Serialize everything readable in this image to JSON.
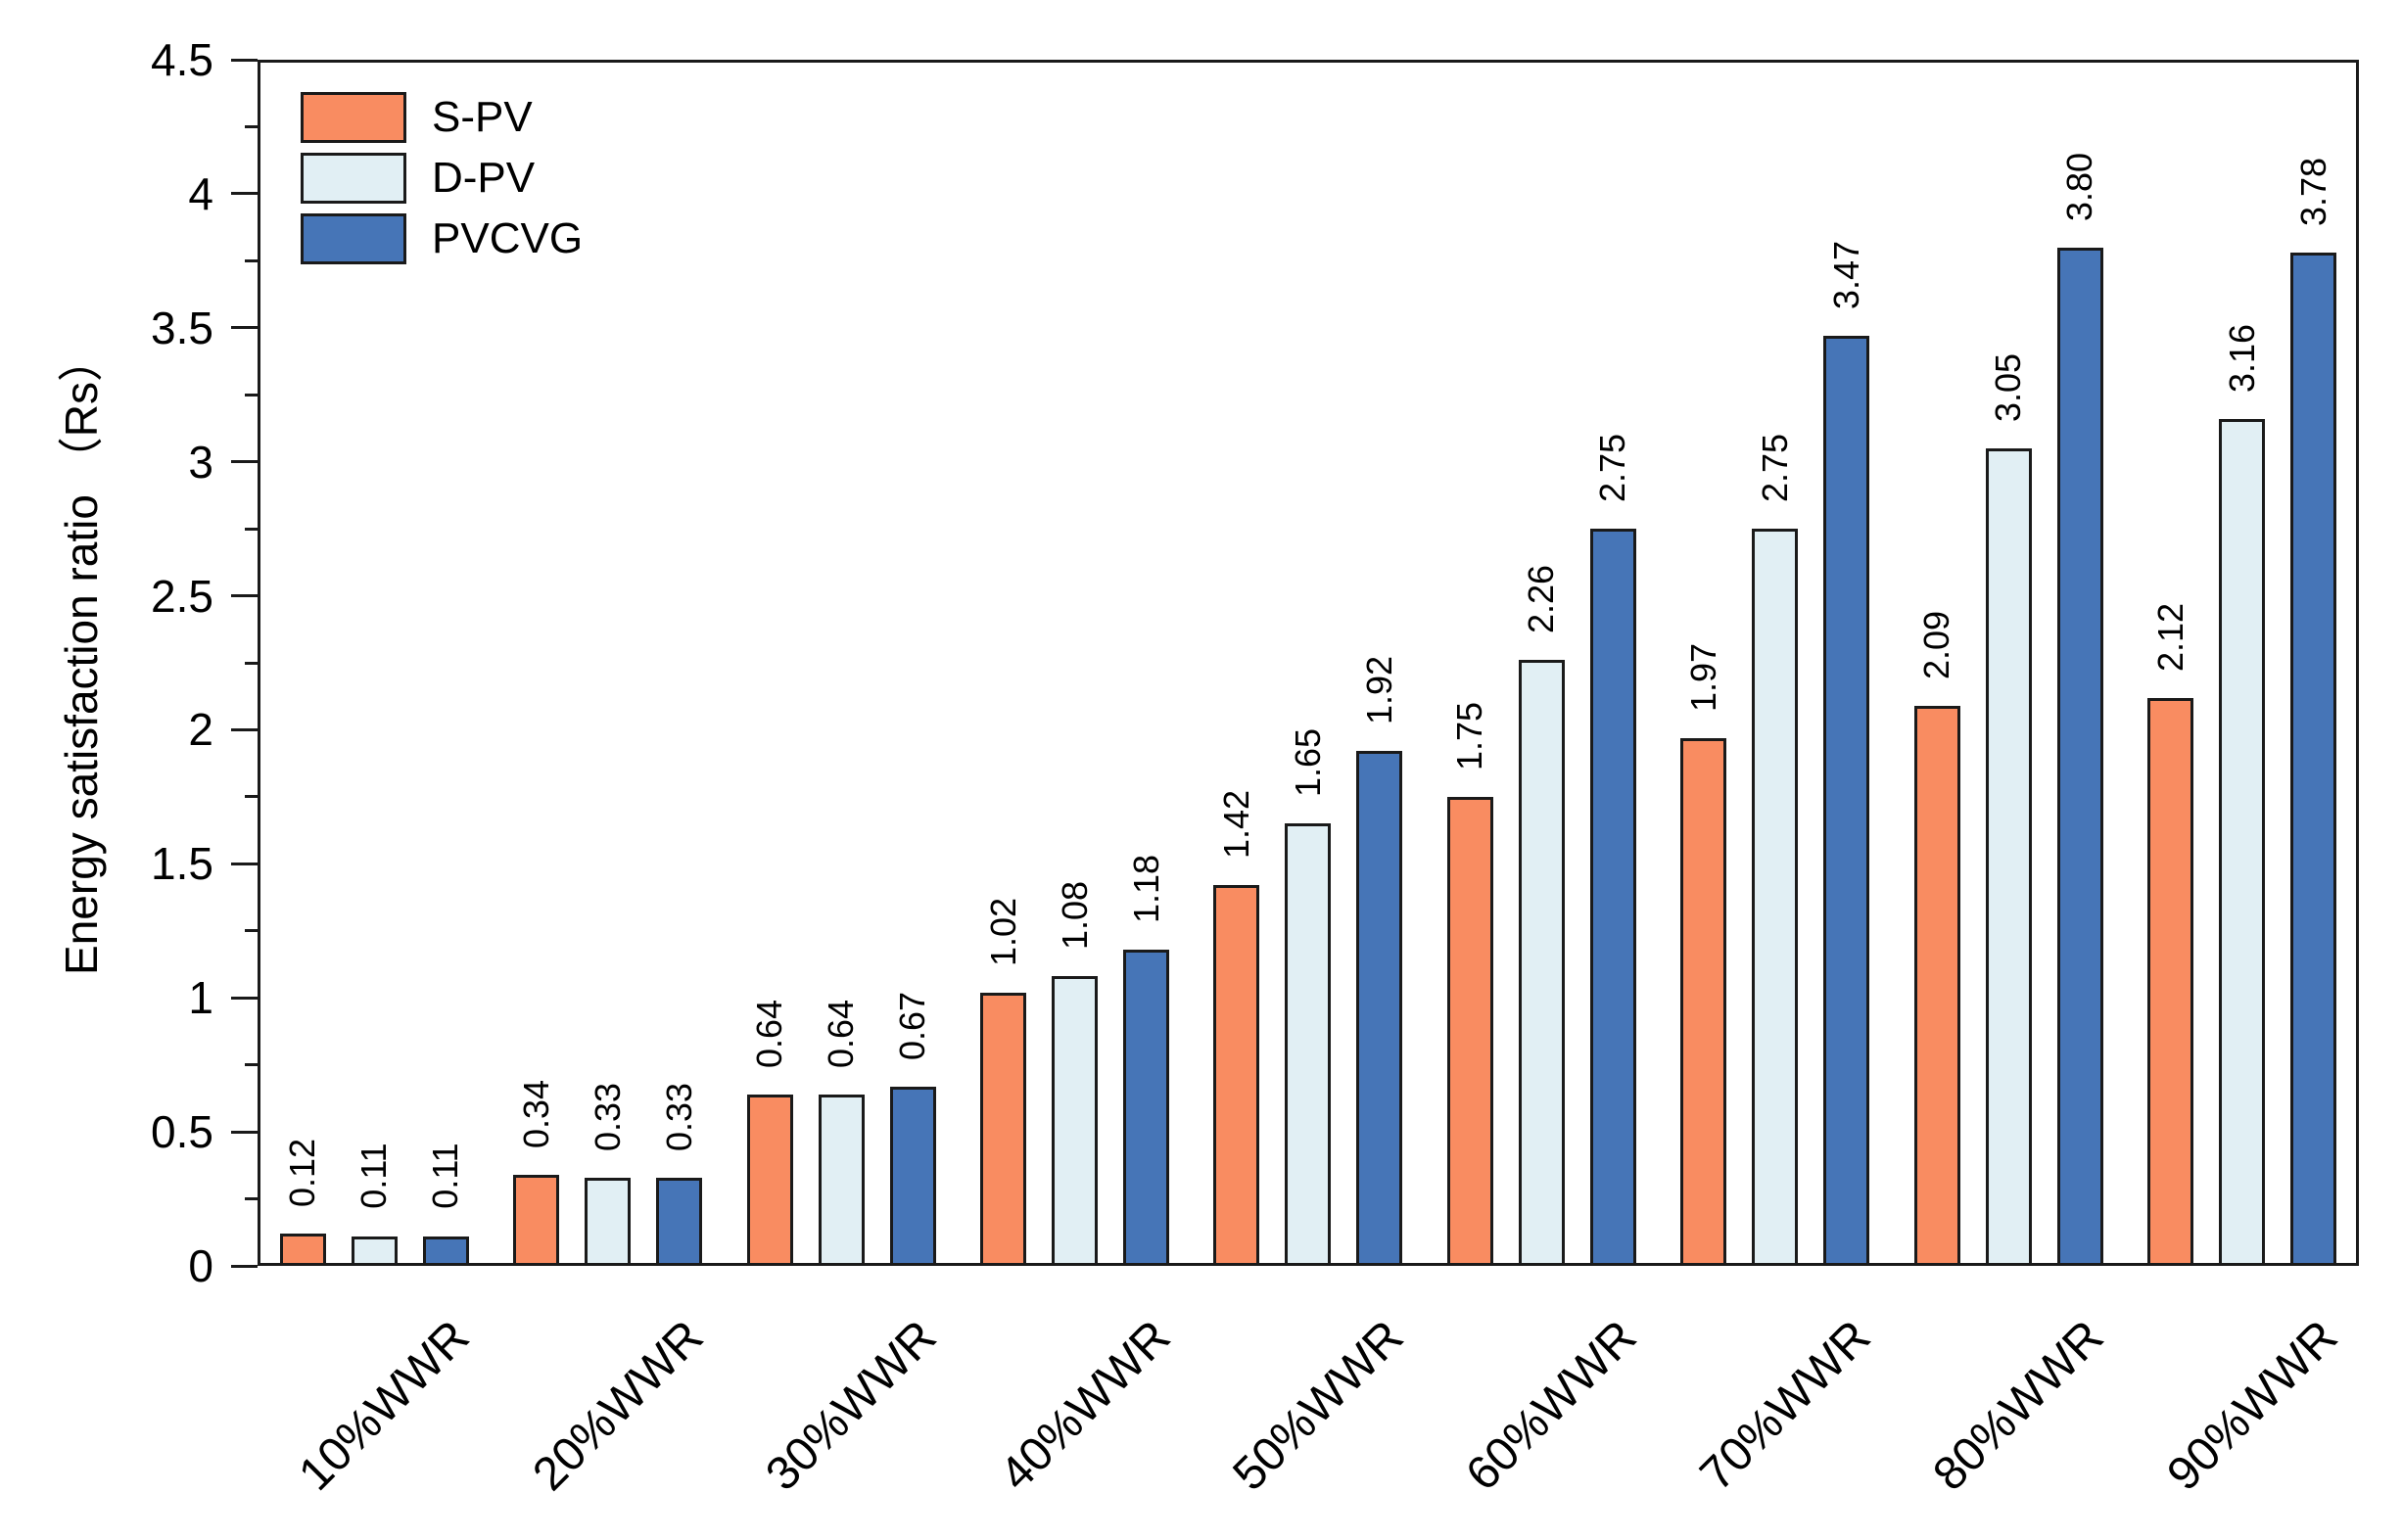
{
  "chart_data": {
    "type": "bar",
    "title": "",
    "xlabel": "",
    "ylabel": "Energy satisfaction ratio （Rs）",
    "ylim": [
      0,
      4.5
    ],
    "y_major_step": 0.5,
    "y_minor_step": 0.25,
    "y_tick_labels": [
      "0",
      "0.5",
      "1",
      "1.5",
      "2",
      "2.5",
      "3",
      "3.5",
      "4",
      "4.5"
    ],
    "grid": false,
    "legend_position": "top-left-inside",
    "background_color": "#FFFFFF",
    "axis_color": "#1A1A1A",
    "bar_border_color": "#1A1A1A",
    "categories": [
      "10%WWR",
      "20%WWR",
      "30%WWR",
      "40%WWR",
      "50%WWR",
      "60%WWR",
      "70%WWR",
      "80%WWR",
      "90%WWR"
    ],
    "series": [
      {
        "name": "S-PV",
        "color": "#F98C61",
        "values": [
          0.12,
          0.34,
          0.64,
          1.02,
          1.42,
          1.75,
          1.97,
          2.09,
          2.12
        ],
        "labels": [
          "0.12",
          "0.34",
          "0.64",
          "1.02",
          "1.42",
          "1.75",
          "1.97",
          "2.09",
          "2.12"
        ]
      },
      {
        "name": "D-PV",
        "color": "#E1EFF4",
        "values": [
          0.11,
          0.33,
          0.64,
          1.08,
          1.65,
          2.26,
          2.75,
          3.05,
          3.16
        ],
        "labels": [
          "0.11",
          "0.33",
          "0.64",
          "1.08",
          "1.65",
          "2.26",
          "2.75",
          "3.05",
          "3.16"
        ]
      },
      {
        "name": "PVCVG",
        "color": "#4675B7",
        "values": [
          0.11,
          0.33,
          0.67,
          1.18,
          1.92,
          2.75,
          3.47,
          3.8,
          3.78
        ],
        "labels": [
          "0.11",
          "0.33",
          "0.67",
          "1.18",
          "1.92",
          "2.75",
          "3.47",
          "3.80",
          "3.78"
        ]
      }
    ]
  }
}
